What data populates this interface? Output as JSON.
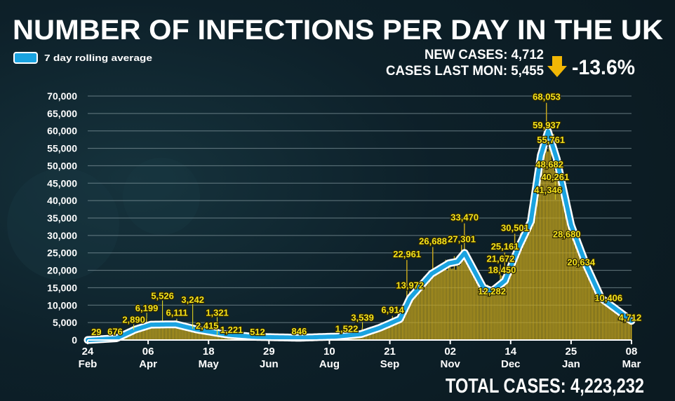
{
  "chart_data": {
    "type": "bar",
    "title": "NUMBER OF INFECTIONS PER DAY IN THE UK",
    "legend": {
      "entries": [
        "7 day rolling average"
      ],
      "placement": "top-left"
    },
    "summary": {
      "new_cases": "NEW CASES: 4,712",
      "last_mon": "CASES LAST MON: 5,455",
      "change": "-13.6%",
      "change_direction": "down",
      "total": "TOTAL CASES: 4,223,232"
    },
    "colors": {
      "bars": "#c9a81c",
      "rolling_average": "#1aa3e0",
      "labels": "#f5e21b",
      "arrow": "#f2b705"
    },
    "xlim": [
      "2020-02-24",
      "2021-03-08"
    ],
    "ylim": [
      0,
      70000
    ],
    "grid": true,
    "x_ticks": [
      {
        "date": "2020-02-24",
        "day": "24",
        "month": "Feb"
      },
      {
        "date": "2020-04-06",
        "day": "06",
        "month": "Apr"
      },
      {
        "date": "2020-05-18",
        "day": "18",
        "month": "May"
      },
      {
        "date": "2020-06-29",
        "day": "29",
        "month": "Jun"
      },
      {
        "date": "2020-08-10",
        "day": "10",
        "month": "Aug"
      },
      {
        "date": "2020-09-21",
        "day": "21",
        "month": "Sep"
      },
      {
        "date": "2020-11-02",
        "day": "02",
        "month": "Nov"
      },
      {
        "date": "2020-12-14",
        "day": "14",
        "month": "Dec"
      },
      {
        "date": "2021-01-25",
        "day": "25",
        "month": "Jan"
      },
      {
        "date": "2021-03-08",
        "day": "08",
        "month": "Mar"
      }
    ],
    "y_ticks": [
      "0",
      "5,000",
      "10,000",
      "15,000",
      "20,000",
      "25,000",
      "30,000",
      "35,000",
      "40,000",
      "45,000",
      "50,000",
      "55,000",
      "60,000",
      "65,000",
      "70,000"
    ],
    "rolling_average": [
      [
        "2020-02-24",
        0
      ],
      [
        "2020-03-15",
        500
      ],
      [
        "2020-03-28",
        3000
      ],
      [
        "2020-04-08",
        4400
      ],
      [
        "2020-04-25",
        4500
      ],
      [
        "2020-05-10",
        3000
      ],
      [
        "2020-06-01",
        1500
      ],
      [
        "2020-06-20",
        900
      ],
      [
        "2020-07-20",
        650
      ],
      [
        "2020-08-15",
        1000
      ],
      [
        "2020-09-01",
        1700
      ],
      [
        "2020-09-14",
        3500
      ],
      [
        "2020-09-28",
        6000
      ],
      [
        "2020-10-05",
        12000
      ],
      [
        "2020-10-20",
        19000
      ],
      [
        "2020-11-01",
        22000
      ],
      [
        "2020-11-07",
        22500
      ],
      [
        "2020-11-12",
        25000
      ],
      [
        "2020-11-25",
        15000
      ],
      [
        "2020-12-01",
        14000
      ],
      [
        "2020-12-10",
        17000
      ],
      [
        "2020-12-20",
        27000
      ],
      [
        "2020-12-28",
        34000
      ],
      [
        "2021-01-04",
        53000
      ],
      [
        "2021-01-09",
        59900
      ],
      [
        "2021-01-15",
        52000
      ],
      [
        "2021-01-25",
        33000
      ],
      [
        "2021-02-05",
        21000
      ],
      [
        "2021-02-15",
        12000
      ],
      [
        "2021-02-28",
        8000
      ],
      [
        "2021-03-08",
        5500
      ]
    ],
    "annotations": [
      {
        "date": "2020-03-01",
        "value": 29,
        "label": "29"
      },
      {
        "date": "2020-03-14",
        "value": 676,
        "label": "676"
      },
      {
        "date": "2020-03-27",
        "value": 2890,
        "label": "2,890"
      },
      {
        "date": "2020-04-05",
        "value": 6199,
        "label": "6,199"
      },
      {
        "date": "2020-04-16",
        "value": 5526,
        "label": "5,526"
      },
      {
        "date": "2020-04-26",
        "value": 6111,
        "label": "6,111"
      },
      {
        "date": "2020-05-07",
        "value": 3242,
        "label": "3,242"
      },
      {
        "date": "2020-05-17",
        "value": 2415,
        "label": "2,415"
      },
      {
        "date": "2020-05-24",
        "value": 1321,
        "label": "1,321"
      },
      {
        "date": "2020-06-03",
        "value": 1221,
        "label": "1,221"
      },
      {
        "date": "2020-06-21",
        "value": 512,
        "label": "512"
      },
      {
        "date": "2020-07-20",
        "value": 846,
        "label": "846"
      },
      {
        "date": "2020-08-22",
        "value": 1522,
        "label": "1,522"
      },
      {
        "date": "2020-09-02",
        "value": 3539,
        "label": "3,539"
      },
      {
        "date": "2020-09-23",
        "value": 6914,
        "label": "6,914"
      },
      {
        "date": "2020-10-03",
        "value": 22961,
        "label": "22,961"
      },
      {
        "date": "2020-10-05",
        "value": 13972,
        "label": "13,972"
      },
      {
        "date": "2020-10-21",
        "value": 26688,
        "label": "26,688"
      },
      {
        "date": "2020-11-12",
        "value": 33470,
        "label": "33,470"
      },
      {
        "date": "2020-11-10",
        "value": 27301,
        "label": "27,301"
      },
      {
        "date": "2020-12-01",
        "value": 12282,
        "label": "12,282"
      },
      {
        "date": "2020-12-08",
        "value": 18450,
        "label": "18,450"
      },
      {
        "date": "2020-12-07",
        "value": 21672,
        "label": "21,672"
      },
      {
        "date": "2020-12-10",
        "value": 25161,
        "label": "25,161"
      },
      {
        "date": "2020-12-17",
        "value": 30501,
        "label": "30,501"
      },
      {
        "date": "2021-01-08",
        "value": 68053,
        "label": "68,053"
      },
      {
        "date": "2021-01-08",
        "value": 59937,
        "label": "59,937"
      },
      {
        "date": "2021-01-11",
        "value": 55761,
        "label": "55,761"
      },
      {
        "date": "2021-01-10",
        "value": 48682,
        "label": "48,682"
      },
      {
        "date": "2021-01-09",
        "value": 41346,
        "label": "41,346"
      },
      {
        "date": "2021-01-14",
        "value": 40261,
        "label": "40,261"
      },
      {
        "date": "2021-01-22",
        "value": 28680,
        "label": "28,680"
      },
      {
        "date": "2021-02-01",
        "value": 20634,
        "label": "20,634"
      },
      {
        "date": "2021-02-20",
        "value": 10406,
        "label": "10,406"
      },
      {
        "date": "2021-03-07",
        "value": 4712,
        "label": "4,712"
      }
    ]
  }
}
